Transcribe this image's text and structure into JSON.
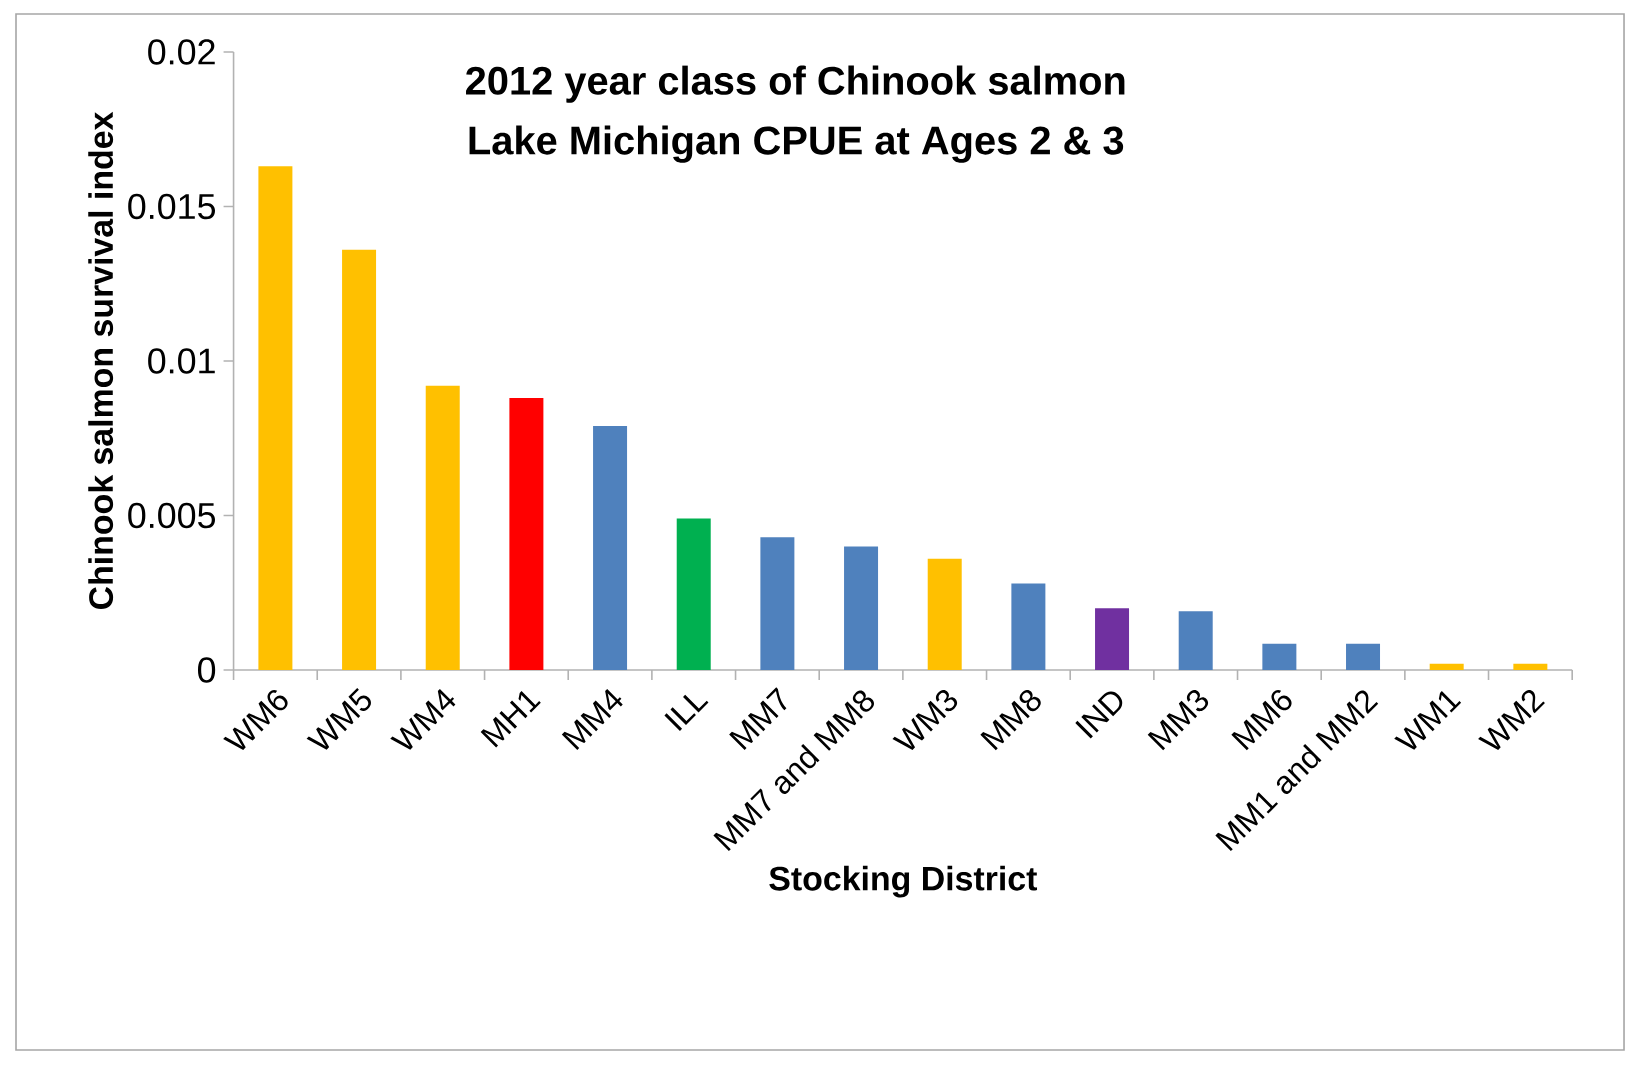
{
  "chart_data": {
    "type": "bar",
    "title": "2012 year class of Chinook salmon",
    "subtitle": "Lake Michigan CPUE at Ages 2 & 3",
    "xlabel": "Stocking District",
    "ylabel": "Chinook salmon survival index",
    "categories": [
      "WM6",
      "WM5",
      "WM4",
      "MH1",
      "MM4",
      "ILL",
      "MM7",
      "MM7 and MM8",
      "WM3",
      "MM8",
      "IND",
      "MM3",
      "MM6",
      "MM1 and MM2",
      "WM1",
      "WM2"
    ],
    "values": [
      0.0163,
      0.0136,
      0.0092,
      0.0088,
      0.0079,
      0.0049,
      0.0043,
      0.004,
      0.0036,
      0.0028,
      0.002,
      0.0019,
      0.00085,
      0.00085,
      0.0002,
      0.0002
    ],
    "colors": [
      "#ffc000",
      "#ffc000",
      "#ffc000",
      "#ff0000",
      "#4f81bd",
      "#00b050",
      "#4f81bd",
      "#4f81bd",
      "#ffc000",
      "#4f81bd",
      "#7030a0",
      "#4f81bd",
      "#4f81bd",
      "#4f81bd",
      "#ffc000",
      "#ffc000"
    ],
    "ylim": [
      0,
      0.02
    ],
    "yticks": [
      0,
      0.005,
      0.01,
      0.015,
      0.02
    ]
  }
}
